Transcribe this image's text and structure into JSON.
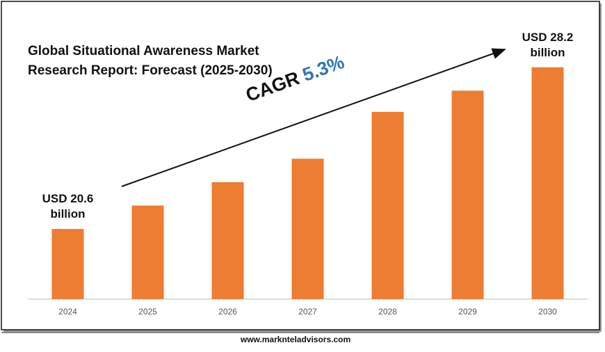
{
  "chart_data": {
    "type": "bar",
    "title": "Global Situational Awareness Market Research Report: Forecast (2025-2030)",
    "annotation": {
      "label": "CAGR",
      "value": "5.3%"
    },
    "source": "www.marknteladvisors.com",
    "categories": [
      "2024",
      "2025",
      "2026",
      "2027",
      "2028",
      "2029",
      "2030"
    ],
    "values": [
      20.6,
      21.7,
      22.8,
      23.9,
      26.1,
      27.1,
      28.2
    ],
    "value_labels": [
      "USD 20.6 billion",
      null,
      null,
      null,
      null,
      null,
      "USD 28.2 billion"
    ],
    "color": "#ed7d31",
    "ylim": [
      17.3,
      29.4
    ]
  }
}
